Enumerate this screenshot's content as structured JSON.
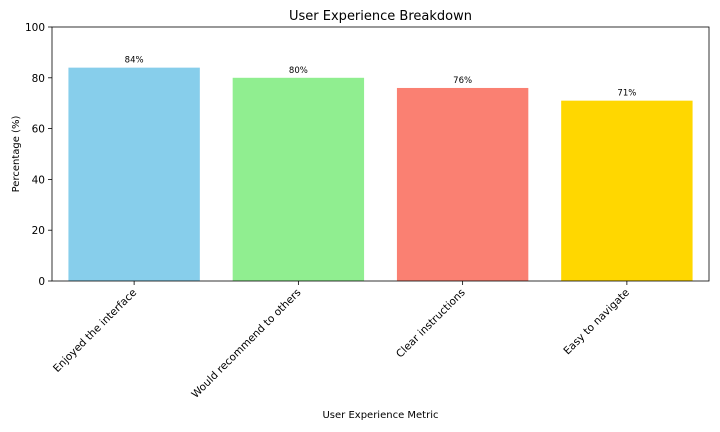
{
  "chart_data": {
    "type": "bar",
    "title": "User Experience Breakdown",
    "xlabel": "User Experience Metric",
    "ylabel": "Percentage (%)",
    "categories": [
      "Enjoyed the interface",
      "Would recommend to others",
      "Clear instructions",
      "Easy to navigate"
    ],
    "values": [
      84,
      80,
      76,
      71
    ],
    "data_labels": [
      "84%",
      "80%",
      "76%",
      "71%"
    ],
    "colors": [
      "#87CEEB",
      "#90EE90",
      "#FA8072",
      "#FFD700"
    ],
    "ylim": [
      0,
      100
    ],
    "yticks": [
      0,
      20,
      40,
      60,
      80,
      100
    ],
    "grid": false,
    "legend": "none"
  }
}
